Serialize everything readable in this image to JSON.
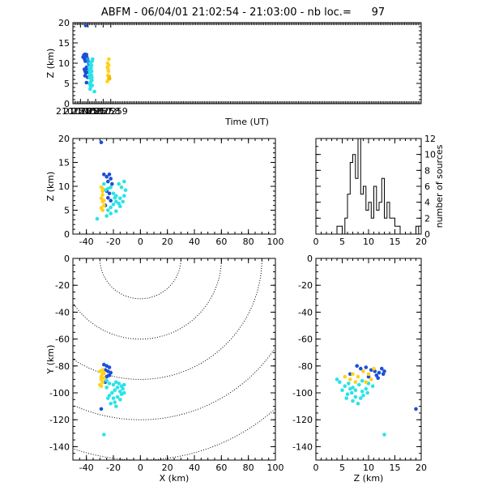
{
  "title": "ABFM - 06/04/01 21:02:54 - 21:03:00 - nb loc.=      97",
  "colors": {
    "blue": "#1c4fd8",
    "lightblue": "#1f8ff0",
    "cyan": "#2be3e8",
    "yellow": "#ffd21a",
    "orange": "#f5b800"
  },
  "chart_data": [
    {
      "type": "scatter",
      "panel": "time-height",
      "xlabel": "Time (UT)",
      "ylabel": "Z (km)",
      "xlim": [
        210254,
        210300
      ],
      "ylim": [
        0,
        20
      ],
      "xticks": [
        "210254",
        "210255",
        "210256",
        "210257",
        "210258",
        "210259"
      ],
      "yticks": [
        "0",
        "5",
        "10",
        "15",
        "20"
      ],
      "series": [
        {
          "color": "blue",
          "points": [
            [
              210255.7,
              19.3
            ],
            [
              210255.35,
              11.5
            ],
            [
              210255.45,
              12.0
            ],
            [
              210255.5,
              11.8
            ],
            [
              210255.55,
              11.0
            ],
            [
              210255.6,
              12.2
            ],
            [
              210255.65,
              10.5
            ],
            [
              210255.7,
              11.2
            ],
            [
              210255.75,
              10.8
            ],
            [
              210255.8,
              12.1
            ],
            [
              210255.85,
              11.4
            ],
            [
              210255.52,
              8.5
            ],
            [
              210255.62,
              8.0
            ],
            [
              210255.72,
              7.6
            ],
            [
              210255.82,
              9.0
            ],
            [
              210255.92,
              8.7
            ],
            [
              210256.0,
              7.8
            ],
            [
              210255.95,
              6.5
            ],
            [
              210255.8,
              5.2
            ],
            [
              210255.6,
              6.9
            ]
          ]
        },
        {
          "color": "lightblue",
          "points": [
            [
              210255.95,
              11.0
            ],
            [
              210256.02,
              10.4
            ],
            [
              210256.1,
              9.8
            ],
            [
              210256.15,
              10.2
            ]
          ]
        },
        {
          "color": "cyan",
          "points": [
            [
              210256.15,
              9.0
            ],
            [
              210256.2,
              8.2
            ],
            [
              210256.25,
              7.5
            ],
            [
              210256.3,
              6.8
            ],
            [
              210256.35,
              7.2
            ],
            [
              210256.4,
              6.2
            ],
            [
              210256.45,
              7.0
            ],
            [
              210256.5,
              5.8
            ],
            [
              210256.3,
              5.2
            ],
            [
              210256.2,
              6.4
            ],
            [
              210256.25,
              4.8
            ],
            [
              210256.35,
              4.2
            ],
            [
              210256.4,
              8.8
            ],
            [
              210256.45,
              9.5
            ],
            [
              210256.55,
              10.5
            ],
            [
              210256.6,
              11.0
            ],
            [
              210256.3,
              10.0
            ],
            [
              210256.2,
              7.0
            ],
            [
              210256.5,
              6.5
            ],
            [
              210256.55,
              4.5
            ],
            [
              210256.4,
              5.5
            ],
            [
              210256.28,
              3.6
            ],
            [
              210256.85,
              3.0
            ],
            [
              210256.48,
              8.0
            ]
          ]
        },
        {
          "color": "yellow",
          "points": [
            [
              210258.55,
              9.0
            ],
            [
              210258.6,
              10.0
            ],
            [
              210258.65,
              8.5
            ],
            [
              210258.7,
              8.0
            ],
            [
              210258.75,
              11.0
            ],
            [
              210258.62,
              7.0
            ],
            [
              210258.7,
              6.0
            ],
            [
              210258.55,
              5.5
            ],
            [
              210258.78,
              6.8
            ],
            [
              210258.72,
              9.5
            ]
          ]
        },
        {
          "color": "orange",
          "points": [
            [
              210258.8,
              6.5
            ],
            [
              210258.85,
              6.2
            ]
          ]
        }
      ]
    },
    {
      "type": "scatter",
      "panel": "x-height",
      "ylabel": "Z (km)",
      "xlim": [
        -50,
        100
      ],
      "ylim": [
        0,
        20
      ],
      "xticks": [
        "-40",
        "-20",
        "0",
        "20",
        "40",
        "60",
        "80",
        "100"
      ],
      "yticks": [
        "0",
        "5",
        "10",
        "15",
        "20"
      ],
      "series": [
        {
          "color": "blue",
          "points": [
            [
              -29,
              19.2
            ],
            [
              -27,
              12.5
            ],
            [
              -25,
              12.0
            ],
            [
              -23,
              12.5
            ],
            [
              -22,
              11.6
            ],
            [
              -24,
              11.0
            ],
            [
              -21,
              10.5
            ],
            [
              -25,
              9.0
            ],
            [
              -23,
              8.5
            ],
            [
              -24,
              7.6
            ],
            [
              -22,
              7.0
            ],
            [
              -26,
              6.0
            ]
          ]
        },
        {
          "color": "cyan",
          "points": [
            [
              -27,
              10.5
            ],
            [
              -26,
              9.2
            ],
            [
              -24,
              9.5
            ],
            [
              -22,
              9.8
            ],
            [
              -20,
              8.5
            ],
            [
              -18,
              8.0
            ],
            [
              -16,
              10.5
            ],
            [
              -14,
              9.8
            ],
            [
              -12,
              11.0
            ],
            [
              -11,
              9.2
            ],
            [
              -12,
              8.0
            ],
            [
              -15,
              7.5
            ],
            [
              -18,
              6.8
            ],
            [
              -20,
              6.2
            ],
            [
              -22,
              5.6
            ],
            [
              -24,
              5.0
            ],
            [
              -22,
              4.3
            ],
            [
              -18,
              4.8
            ],
            [
              -15,
              5.8
            ],
            [
              -13,
              6.8
            ],
            [
              -16,
              6.4
            ],
            [
              -19,
              7.6
            ],
            [
              -25,
              3.8
            ],
            [
              -32,
              3.2
            ]
          ]
        },
        {
          "color": "yellow",
          "points": [
            [
              -29,
              9.8
            ],
            [
              -28,
              9.0
            ],
            [
              -28,
              8.2
            ],
            [
              -29,
              7.5
            ],
            [
              -28,
              6.8
            ],
            [
              -27,
              6.0
            ],
            [
              -29,
              5.5
            ],
            [
              -28,
              5.0
            ],
            [
              -27,
              7.0
            ],
            [
              -28,
              9.5
            ]
          ]
        }
      ]
    },
    {
      "type": "bar",
      "panel": "height-histogram",
      "xlim": [
        0,
        20
      ],
      "ylim": [
        0,
        12
      ],
      "ylabel": "number of sources",
      "xticks": [
        "0",
        "5",
        "10",
        "15",
        "20"
      ],
      "yticks": [
        "0",
        "2",
        "4",
        "6",
        "8",
        "10",
        "12"
      ],
      "bin_width": 0.5,
      "bin_start": 3.0,
      "values": [
        0,
        0,
        1,
        1,
        0,
        2,
        5,
        9,
        10,
        7,
        12,
        5,
        6,
        3,
        4,
        2,
        6,
        3,
        4,
        7,
        2,
        4,
        2,
        2,
        1,
        1,
        0,
        0,
        0,
        0,
        0,
        0,
        1,
        0
      ]
    },
    {
      "type": "scatter",
      "panel": "plan-view",
      "xlabel": "X (km)",
      "ylabel": "Y (km)",
      "xlim": [
        -50,
        100
      ],
      "ylim": [
        -150,
        0
      ],
      "xticks": [
        "-40",
        "-20",
        "0",
        "20",
        "40",
        "60",
        "80",
        "100"
      ],
      "yticks": [
        "0",
        "-20",
        "-40",
        "-60",
        "-80",
        "-100",
        "-120",
        "-140"
      ],
      "range_rings_km": [
        30,
        60,
        90,
        120,
        150
      ],
      "ring_center": [
        0,
        0
      ],
      "series": [
        {
          "color": "blue",
          "points": [
            [
              -27,
              -79
            ],
            [
              -25,
              -80
            ],
            [
              -23,
              -81
            ],
            [
              -26,
              -83
            ],
            [
              -24,
              -84
            ],
            [
              -22,
              -85
            ],
            [
              -23,
              -87
            ],
            [
              -25,
              -88
            ],
            [
              -26,
              -92
            ],
            [
              -29,
              -112
            ]
          ]
        },
        {
          "color": "cyan",
          "points": [
            [
              -25,
              -91
            ],
            [
              -23,
              -93
            ],
            [
              -20,
              -94
            ],
            [
              -18,
              -92
            ],
            [
              -16,
              -93
            ],
            [
              -14,
              -95
            ],
            [
              -12,
              -94
            ],
            [
              -13,
              -97
            ],
            [
              -15,
              -99
            ],
            [
              -17,
              -96
            ],
            [
              -19,
              -98
            ],
            [
              -21,
              -100
            ],
            [
              -23,
              -102
            ],
            [
              -24,
              -104
            ],
            [
              -20,
              -104
            ],
            [
              -17,
              -103
            ],
            [
              -14,
              -101
            ],
            [
              -12,
              -100
            ],
            [
              -15,
              -105
            ],
            [
              -19,
              -107
            ],
            [
              -22,
              -108
            ],
            [
              -18,
              -110
            ],
            [
              -27,
              -131
            ],
            [
              -25,
              -96
            ]
          ]
        },
        {
          "color": "yellow",
          "points": [
            [
              -30,
              -84
            ],
            [
              -28,
              -86
            ],
            [
              -29,
              -88
            ],
            [
              -27,
              -89
            ],
            [
              -29,
              -90
            ],
            [
              -28,
              -92
            ],
            [
              -30,
              -94
            ],
            [
              -27,
              -85
            ],
            [
              -29,
              -95
            ],
            [
              -28,
              -83
            ]
          ]
        }
      ]
    },
    {
      "type": "scatter",
      "panel": "height-y",
      "xlabel": "Z (km)",
      "xlim": [
        0,
        20
      ],
      "ylim": [
        -150,
        0
      ],
      "xticks": [
        "0",
        "5",
        "10",
        "15",
        "20"
      ],
      "yticks": [
        "0",
        "-20",
        "-40",
        "-60",
        "-80",
        "-100",
        "-120",
        "-140"
      ],
      "series": [
        {
          "color": "blue",
          "points": [
            [
              7.8,
              -80
            ],
            [
              8.5,
              -82
            ],
            [
              9.5,
              -81
            ],
            [
              10.5,
              -83
            ],
            [
              11.2,
              -84
            ],
            [
              12.0,
              -85
            ],
            [
              12.8,
              -86
            ],
            [
              11.5,
              -87
            ],
            [
              10.0,
              -88
            ],
            [
              6.5,
              -86
            ],
            [
              19.0,
              -112
            ],
            [
              12.5,
              -82
            ],
            [
              11.8,
              -89
            ],
            [
              13.0,
              -84
            ]
          ]
        },
        {
          "color": "cyan",
          "points": [
            [
              4.5,
              -92
            ],
            [
              5.5,
              -95
            ],
            [
              6.2,
              -93
            ],
            [
              7.0,
              -96
            ],
            [
              7.5,
              -98
            ],
            [
              8.2,
              -94
            ],
            [
              8.8,
              -99
            ],
            [
              9.5,
              -97
            ],
            [
              6.8,
              -100
            ],
            [
              7.5,
              -103
            ],
            [
              8.5,
              -104
            ],
            [
              9.0,
              -102
            ],
            [
              6.0,
              -101
            ],
            [
              5.0,
              -98
            ],
            [
              10.0,
              -93
            ],
            [
              10.8,
              -95
            ],
            [
              8.0,
              -108
            ],
            [
              7.0,
              -106
            ],
            [
              6.5,
              -97
            ],
            [
              9.8,
              -100
            ],
            [
              4.0,
              -90
            ],
            [
              8.8,
              -91
            ],
            [
              13.0,
              -131
            ],
            [
              5.8,
              -104
            ]
          ]
        },
        {
          "color": "yellow",
          "points": [
            [
              7.0,
              -86
            ],
            [
              8.0,
              -88
            ],
            [
              9.0,
              -84
            ],
            [
              10.0,
              -86
            ],
            [
              10.5,
              -90
            ],
            [
              9.5,
              -92
            ],
            [
              7.5,
              -92
            ],
            [
              6.5,
              -90
            ],
            [
              11.0,
              -82
            ],
            [
              5.5,
              -88
            ]
          ]
        }
      ]
    }
  ]
}
